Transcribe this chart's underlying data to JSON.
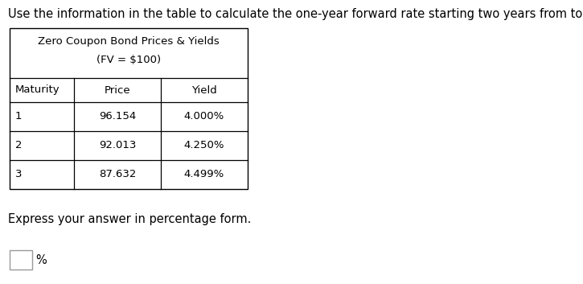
{
  "title_text": "Use the information in the table to calculate the one-year forward rate starting two years from today.",
  "table_title_line1": "Zero Coupon Bond Prices & Yields",
  "table_title_line2": "(FV = $100)",
  "col_headers": [
    "Maturity",
    "Price",
    "Yield"
  ],
  "rows": [
    [
      "1",
      "96.154",
      "4.000%"
    ],
    [
      "2",
      "92.013",
      "4.250%"
    ],
    [
      "3",
      "87.632",
      "4.499%"
    ]
  ],
  "footer_text": "Express your answer in percentage form.",
  "background_color": "#ffffff",
  "table_border_color": "#000000",
  "text_color": "#000000",
  "font_size_title": 10.5,
  "font_size_table": 9.5,
  "font_size_footer": 10.5
}
